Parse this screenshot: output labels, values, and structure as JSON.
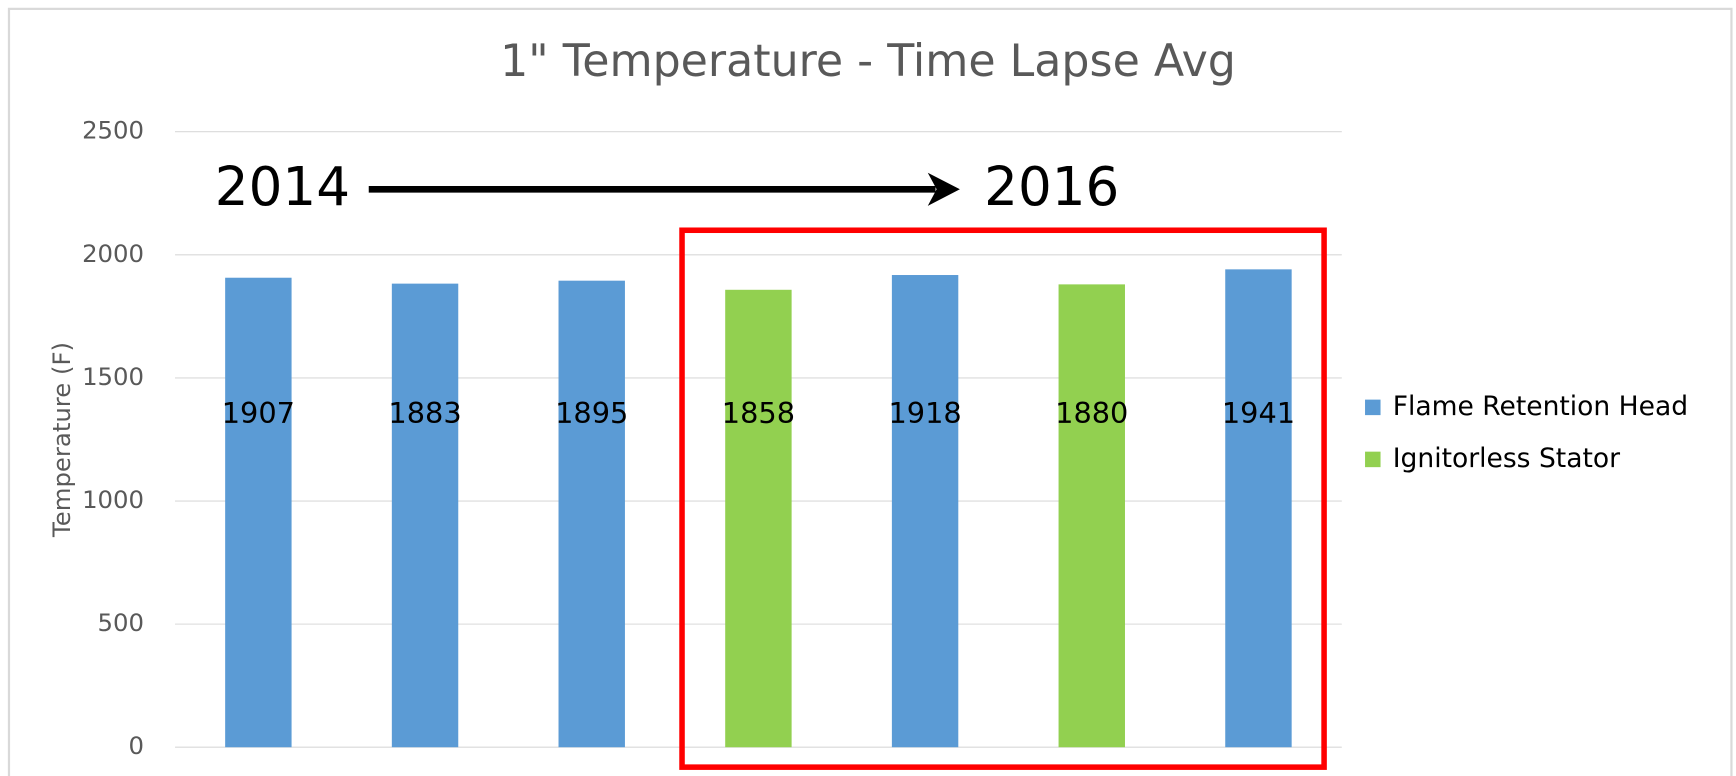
{
  "chart_data": {
    "type": "bar",
    "title": "1\" Temperature - Time Lapse Avg",
    "y_label": "Temperature (F)",
    "categories": [
      null,
      null,
      null,
      null,
      null,
      null,
      null
    ],
    "series": [
      {
        "name": "Flame Retention Head",
        "color": "#5b9bd5",
        "values": [
          1907,
          1883,
          1895,
          null,
          1918,
          null,
          1941
        ]
      },
      {
        "name": "Ignitorless Stator",
        "color": "#92d050",
        "values": [
          null,
          null,
          null,
          1858,
          null,
          1880,
          null
        ]
      }
    ],
    "ylim": [
      0,
      2500
    ],
    "yticks": [
      0,
      500,
      1000,
      1500,
      2000,
      2500
    ],
    "grid": true,
    "legend": "right",
    "annotations": [
      "2014",
      "2016"
    ]
  }
}
